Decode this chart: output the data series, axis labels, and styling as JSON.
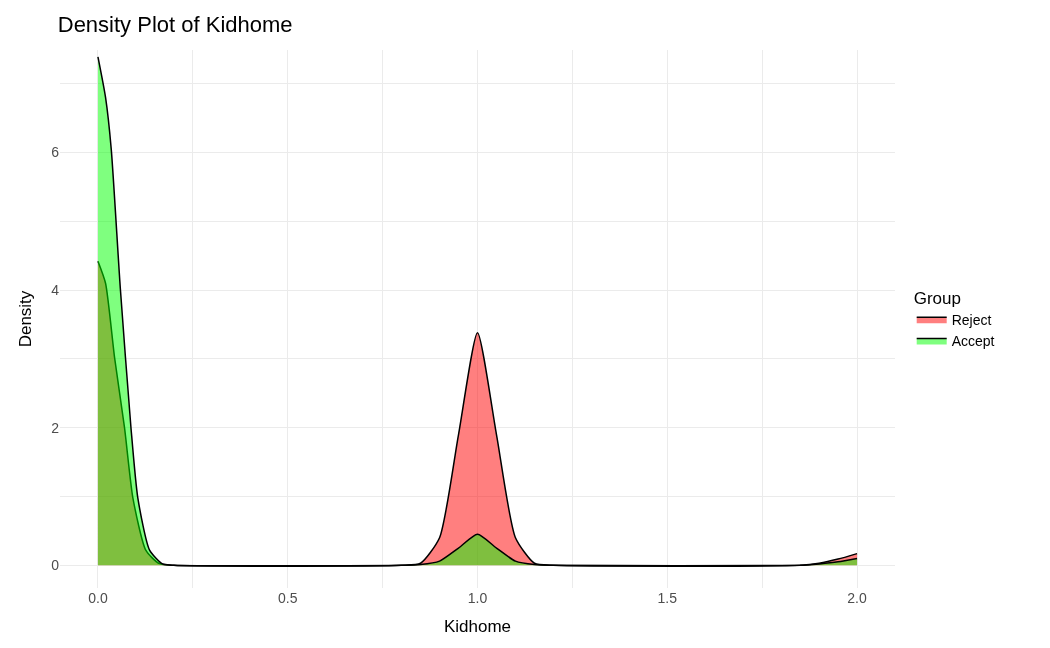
{
  "chart_data": {
    "type": "area",
    "title": "Density Plot of Kidhome",
    "xlabel": "Kidhome",
    "ylabel": "Density",
    "legend_title": "Group",
    "series": [
      {
        "name": "Reject",
        "color": "#ff0000",
        "x": [
          0,
          0.02,
          0.044,
          0.07,
          0.092,
          0.126,
          0.16,
          0.2,
          0.8,
          0.85,
          0.9,
          0.95,
          1.0,
          1.05,
          1.1,
          1.15,
          1.2,
          1.85,
          1.9,
          1.95,
          2.0
        ],
        "values": [
          4.42,
          4.1,
          3.01,
          2.0,
          0.98,
          0.22,
          0.03,
          0,
          0,
          0.03,
          0.4,
          1.9,
          3.38,
          1.9,
          0.4,
          0.03,
          0,
          0,
          0.03,
          0.09,
          0.17
        ]
      },
      {
        "name": "Accept",
        "color": "#00ff00",
        "x": [
          0,
          0.02,
          0.035,
          0.059,
          0.087,
          0.105,
          0.136,
          0.17,
          0.2,
          0.8,
          0.85,
          0.9,
          0.95,
          1.0,
          1.05,
          1.1,
          1.15,
          1.2,
          1.85,
          1.9,
          1.95,
          2.0
        ],
        "values": [
          7.39,
          6.8,
          6.05,
          4.02,
          2.0,
          0.98,
          0.22,
          0.02,
          0,
          0,
          0.01,
          0.06,
          0.25,
          0.45,
          0.25,
          0.06,
          0.01,
          0,
          0,
          0.02,
          0.05,
          0.1
        ]
      }
    ],
    "xlim": [
      -0.1,
      2.1
    ],
    "ylim": [
      -0.33,
      7.49
    ],
    "xticks": [
      {
        "value": 0,
        "label": "0.0"
      },
      {
        "value": 0.25,
        "label": null
      },
      {
        "value": 0.5,
        "label": "0.5"
      },
      {
        "value": 0.75,
        "label": null
      },
      {
        "value": 1,
        "label": "1.0"
      },
      {
        "value": 1.25,
        "label": null
      },
      {
        "value": 1.5,
        "label": "1.5"
      },
      {
        "value": 1.75,
        "label": null
      },
      {
        "value": 2,
        "label": "2.0"
      }
    ],
    "yticks": [
      0,
      {
        "value": 1,
        "label": null
      },
      2,
      {
        "value": 3,
        "label": null
      },
      4,
      {
        "value": 5,
        "label": null
      },
      6,
      {
        "value": 7,
        "label": null
      }
    ],
    "grid": true,
    "legend": "right"
  }
}
